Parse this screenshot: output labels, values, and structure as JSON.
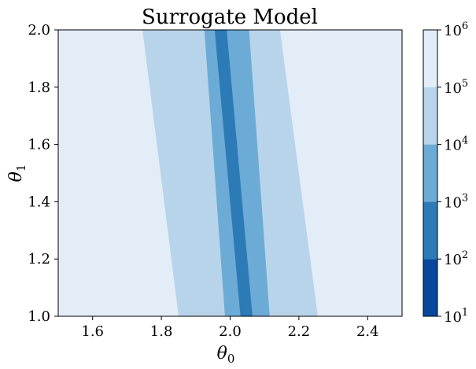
{
  "chart_data": {
    "type": "contour",
    "title": "Surrogate Model",
    "xlabel": "θ",
    "xlabel_sub": "0",
    "ylabel": "θ",
    "ylabel_sub": "1",
    "xlim": [
      1.5,
      2.5
    ],
    "ylim": [
      1.0,
      2.0
    ],
    "x_ticks": [
      1.6,
      1.8,
      2.0,
      2.2,
      2.4
    ],
    "x_tick_labels": [
      "1.6",
      "1.8",
      "2.0",
      "2.2",
      "2.4"
    ],
    "y_ticks": [
      1.0,
      1.2,
      1.4,
      1.6,
      1.8,
      2.0
    ],
    "y_tick_labels": [
      "1.0",
      "1.2",
      "1.4",
      "1.6",
      "1.8",
      "2.0"
    ],
    "colorbar": {
      "scale": "log",
      "tick_labels": [
        {
          "base": "10",
          "exp": "1"
        },
        {
          "base": "10",
          "exp": "2"
        },
        {
          "base": "10",
          "exp": "3"
        },
        {
          "base": "10",
          "exp": "4"
        },
        {
          "base": "10",
          "exp": "5"
        },
        {
          "base": "10",
          "exp": "6"
        }
      ],
      "levels": [
        1,
        2,
        3,
        4,
        5,
        6
      ],
      "colors": [
        "#08479b",
        "#2c7bb7",
        "#6babd6",
        "#b8d4ea",
        "#e2edf8"
      ]
    },
    "bands": [
      {
        "level_range": [
          4,
          5
        ],
        "color": "#b8d4ea",
        "left_at_y1": 1.85,
        "right_at_y1": 2.255,
        "left_at_y2": 1.745,
        "right_at_y2": 2.145
      },
      {
        "level_range": [
          3,
          4
        ],
        "color": "#6babd6",
        "left_at_y1": 1.985,
        "right_at_y1": 2.115,
        "left_at_y2": 1.925,
        "right_at_y2": 2.055
      },
      {
        "level_range": [
          2,
          3
        ],
        "color": "#2c7bb7",
        "left_at_y1": 2.03,
        "right_at_y1": 2.065,
        "left_at_y2": 1.955,
        "right_at_y2": 1.99
      }
    ],
    "background_color": "#e2edf8"
  }
}
